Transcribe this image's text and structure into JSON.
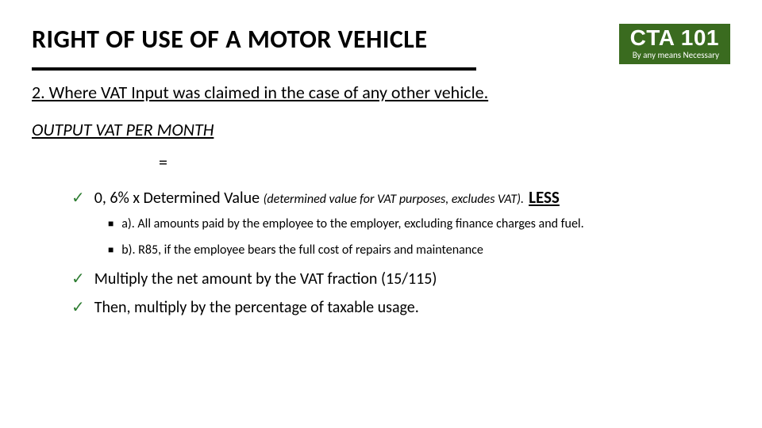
{
  "header": {
    "title": "RIGHT OF USE OF A MOTOR VEHICLE",
    "logo_main": "CTA 101",
    "logo_sub": "By any means Necessary"
  },
  "subtitle": "2. Where VAT Input was claimed in the case of any other vehicle.",
  "section_label": "OUTPUT VAT PER MONTH",
  "equals": "=",
  "bullets": {
    "b1_prefix": "0, 6% x Determined Value ",
    "b1_paren": "(determined value for VAT purposes, excludes VAT).",
    "b1_less": "LESS",
    "sub_a": "a). All amounts paid by the employee to the employer, excluding finance charges and fuel.",
    "sub_b": "b). R85, if the employee bears the full cost of repairs and maintenance",
    "b2": "Multiply the net amount by the VAT fraction (15/115)",
    "b3": "Then, multiply by the percentage of taxable usage."
  }
}
